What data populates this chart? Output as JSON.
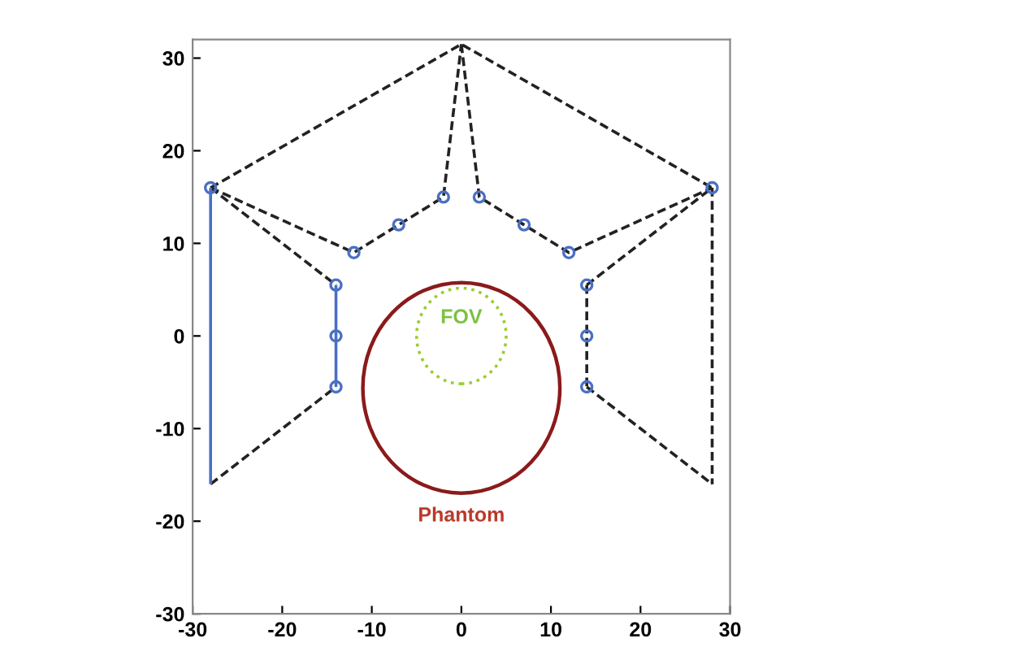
{
  "chart_data": {
    "type": "line",
    "xlim": [
      -30,
      30
    ],
    "ylim": [
      -30,
      32
    ],
    "xticks": [
      -30,
      -20,
      -10,
      0,
      10,
      20,
      30
    ],
    "yticks": [
      -30,
      -20,
      -10,
      0,
      10,
      20,
      30
    ],
    "grid": false,
    "legend": false,
    "series": [
      {
        "color": "#222222",
        "line_style": "dashed",
        "marker": "none",
        "x": [
          -28,
          0,
          28
        ],
        "values": [
          16,
          31.5,
          16
        ]
      },
      {
        "color": "#222222",
        "line_style": "dashed",
        "marker": "none",
        "x": [
          -28,
          -12,
          -7,
          -2,
          0
        ],
        "values": [
          16,
          9,
          12,
          15,
          31.5
        ]
      },
      {
        "color": "#222222",
        "line_style": "dashed",
        "marker": "none",
        "x": [
          0,
          2,
          7,
          12,
          28
        ],
        "values": [
          31.5,
          15,
          12,
          9,
          16
        ]
      },
      {
        "color": "#222222",
        "line_style": "dashed",
        "marker": "none",
        "x": [
          -28,
          -14
        ],
        "values": [
          16,
          5.5
        ]
      },
      {
        "color": "#222222",
        "line_style": "dashed",
        "marker": "none",
        "x": [
          -28,
          -14
        ],
        "values": [
          -16,
          -5.5
        ]
      },
      {
        "color": "#4a6fc4",
        "line_style": "solid",
        "marker": "none",
        "x": [
          -28,
          -28
        ],
        "values": [
          16,
          -16
        ]
      },
      {
        "color": "#4a6fc4",
        "line_style": "solid",
        "marker": "none",
        "x": [
          -14,
          -14
        ],
        "values": [
          5.5,
          -5.5
        ]
      },
      {
        "color": "#222222",
        "line_style": "dashed",
        "marker": "none",
        "x": [
          14,
          28
        ],
        "values": [
          5.5,
          16
        ]
      },
      {
        "color": "#222222",
        "line_style": "dashed",
        "marker": "none",
        "x": [
          14,
          28
        ],
        "values": [
          -5.5,
          -16
        ]
      },
      {
        "color": "#222222",
        "line_style": "dashed",
        "marker": "none",
        "x": [
          14,
          14
        ],
        "values": [
          5.5,
          -5.5
        ]
      },
      {
        "color": "#222222",
        "line_style": "dashed",
        "marker": "none",
        "x": [
          28,
          28
        ],
        "values": [
          16,
          -16
        ]
      },
      {
        "type": "scatter",
        "color": "#4a6fc4",
        "marker": "circle",
        "x": [
          -28,
          -12,
          -7,
          -2,
          2,
          7,
          12,
          28,
          -14,
          -14,
          -14,
          14,
          14,
          14
        ],
        "values": [
          16,
          9,
          12,
          15,
          15,
          12,
          9,
          16,
          5.5,
          0,
          -5.5,
          5.5,
          0,
          -5.5
        ]
      }
    ],
    "annotations": [
      "FOV",
      "Phantom"
    ]
  }
}
